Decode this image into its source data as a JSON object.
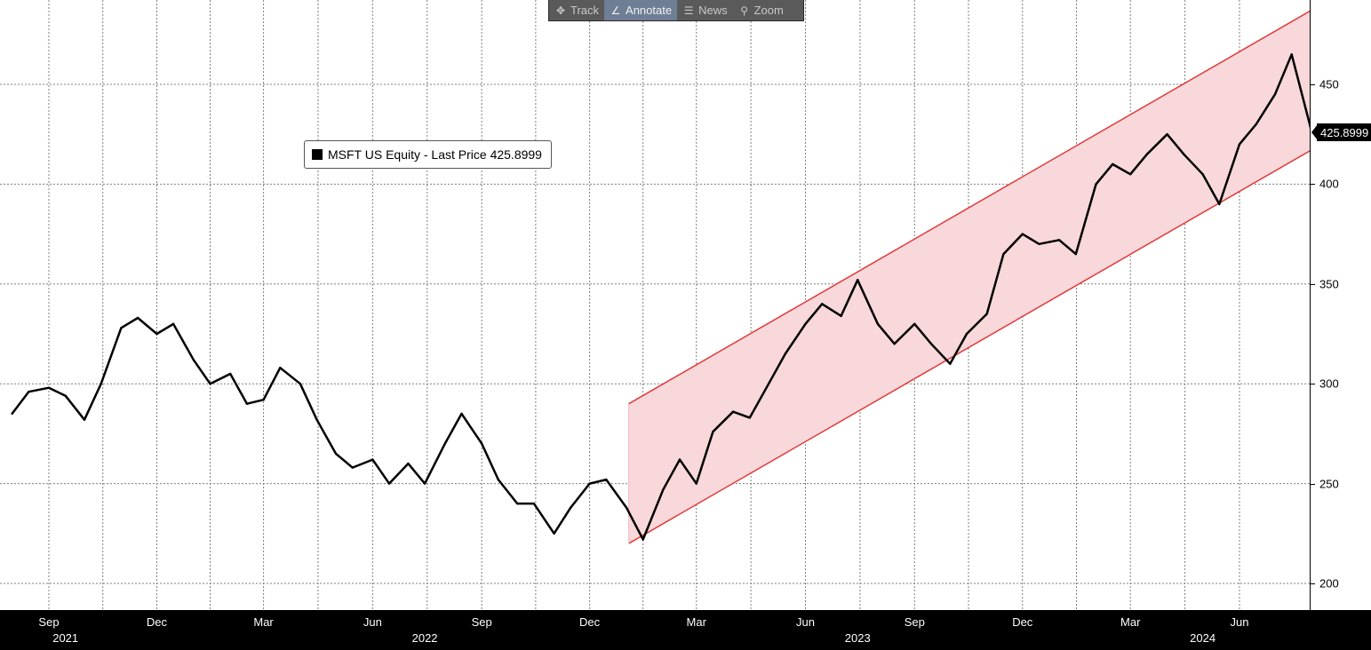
{
  "toolbar": {
    "track_label": "Track",
    "annotate_label": "Annotate",
    "news_label": "News",
    "zoom_label": "Zoom",
    "track_icon": "crosshair-icon",
    "annotate_icon": "pencil-icon",
    "news_icon": "news-icon",
    "zoom_icon": "magnifier-icon"
  },
  "legend": {
    "text": "MSFT US Equity - Last Price 425.8999"
  },
  "last_price_tag": "425.8999",
  "colors": {
    "line": "#000000",
    "channel_fill": "#f8d8da",
    "channel_edge": "#e03a3a",
    "grid": "#7f7f7f",
    "axis_bar": "#000000"
  },
  "chart_data": {
    "type": "line",
    "series": [
      {
        "name": "MSFT US Equity - Last Price",
        "x": [
          "2021-08-01",
          "2021-08-15",
          "2021-09-01",
          "2021-09-15",
          "2021-10-01",
          "2021-10-15",
          "2021-11-01",
          "2021-11-15",
          "2021-12-01",
          "2021-12-15",
          "2022-01-01",
          "2022-01-15",
          "2022-02-01",
          "2022-02-15",
          "2022-03-01",
          "2022-03-15",
          "2022-04-01",
          "2022-04-15",
          "2022-05-01",
          "2022-05-15",
          "2022-06-01",
          "2022-06-15",
          "2022-07-01",
          "2022-07-15",
          "2022-08-01",
          "2022-08-15",
          "2022-09-01",
          "2022-09-15",
          "2022-10-01",
          "2022-10-15",
          "2022-11-01",
          "2022-11-15",
          "2022-12-01",
          "2022-12-15",
          "2023-01-01",
          "2023-01-15",
          "2023-02-01",
          "2023-02-15",
          "2023-03-01",
          "2023-03-15",
          "2023-04-01",
          "2023-04-15",
          "2023-05-01",
          "2023-05-15",
          "2023-06-01",
          "2023-06-15",
          "2023-07-01",
          "2023-07-15",
          "2023-08-01",
          "2023-08-15",
          "2023-09-01",
          "2023-09-15",
          "2023-10-01",
          "2023-10-15",
          "2023-11-01",
          "2023-11-15",
          "2023-12-01",
          "2023-12-15",
          "2024-01-01",
          "2024-01-15",
          "2024-02-01",
          "2024-02-15",
          "2024-03-01",
          "2024-03-15",
          "2024-04-01",
          "2024-04-15",
          "2024-05-01",
          "2024-05-15",
          "2024-06-01",
          "2024-06-15",
          "2024-07-01",
          "2024-07-15",
          "2024-08-01"
        ],
        "values": [
          285,
          296,
          298,
          294,
          282,
          300,
          328,
          333,
          325,
          330,
          312,
          300,
          305,
          290,
          292,
          308,
          300,
          282,
          265,
          258,
          262,
          250,
          260,
          250,
          270,
          285,
          270,
          252,
          240,
          240,
          225,
          238,
          250,
          252,
          238,
          222,
          247,
          262,
          250,
          276,
          286,
          283,
          300,
          315,
          330,
          340,
          334,
          352,
          330,
          320,
          330,
          320,
          310,
          325,
          335,
          365,
          375,
          370,
          372,
          365,
          400,
          410,
          405,
          415,
          425,
          415,
          405,
          390,
          420,
          430,
          445,
          465,
          426
        ]
      }
    ],
    "channel": {
      "start_date": "2023-01-03",
      "end_date": "2024-08-09",
      "upper": [
        290,
        490
      ],
      "lower": [
        220,
        420
      ]
    },
    "x_ticks": [
      "Sep",
      "Dec",
      "Mar",
      "Jun",
      "Sep",
      "Dec",
      "Mar",
      "Jun",
      "Sep",
      "Dec",
      "Mar",
      "Jun"
    ],
    "x_years": [
      "2021",
      "2022",
      "2023",
      "2024"
    ],
    "y_ticks": [
      200,
      250,
      300,
      350,
      400,
      450
    ],
    "ylim": [
      185,
      490
    ],
    "grid": true,
    "legend": "top-left"
  }
}
